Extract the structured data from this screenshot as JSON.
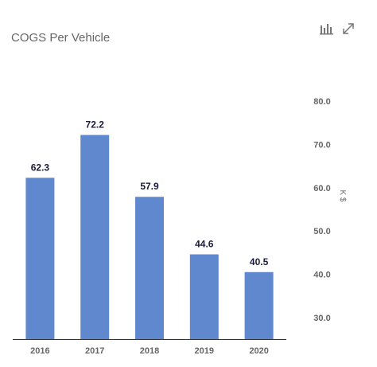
{
  "title": "COGS Per Vehicle",
  "toolbar": {
    "chart_icon": "bar-chart-icon",
    "expand_icon": "expand-icon"
  },
  "chart_data": {
    "type": "bar",
    "title": "COGS Per Vehicle",
    "categories": [
      "2016",
      "2017",
      "2018",
      "2019",
      "2020"
    ],
    "values": [
      62.3,
      72.2,
      57.9,
      44.6,
      40.5
    ],
    "value_labels": [
      "62.3",
      "72.2",
      "57.9",
      "44.6",
      "40.5"
    ],
    "xlabel": "",
    "ylabel": "K $",
    "ylim": [
      25,
      85
    ],
    "y_ticks": [
      30.0,
      40.0,
      50.0,
      60.0,
      70.0,
      80.0
    ],
    "y_tick_labels": [
      "30.0",
      "40.0",
      "50.0",
      "60.0",
      "70.0",
      "80.0"
    ],
    "y_axis_side": "right",
    "grid": false,
    "bar_color": "#5f88cf",
    "axis_color": "#333333"
  }
}
